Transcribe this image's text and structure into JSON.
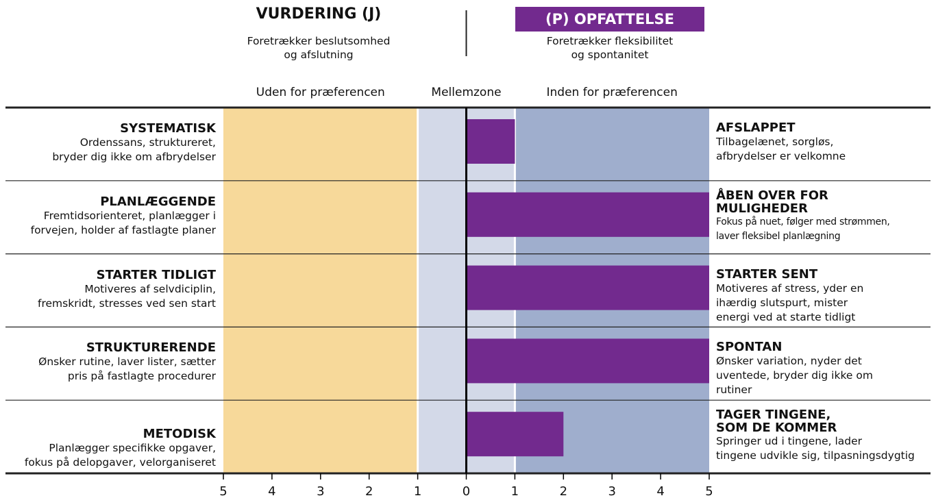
{
  "chart_data": {
    "type": "bar",
    "left_heading": "VURDERING (J)",
    "left_subheading": "Foretrækker beslutsomhed\nog afslutning",
    "right_heading": "(P) OPFATTELSE",
    "right_subheading": "Foretrækker fleksibilitet\nog spontanitet",
    "zones": [
      {
        "label": "Uden for præferencen",
        "from": -5,
        "to": -1,
        "color": "#f7d99a"
      },
      {
        "label": "Mellemzone",
        "from": -1,
        "to": 1,
        "color": "#d3d9e8"
      },
      {
        "label": "Inden for præferencen",
        "from": 1,
        "to": 5,
        "color": "#9faecd"
      }
    ],
    "rows": [
      {
        "left_title": "SYSTEMATISK",
        "left_text": "Ordenssans, struktureret,\nbryder dig ikke om afbrydelser",
        "right_title": "AFSLAPPET",
        "right_text": "Tilbagelænet, sorgløs,\nafbrydelser er velkomne"
      },
      {
        "left_title": "PLANLÆGGENDE",
        "left_text": "Fremtidsorienteret, planlægger i\nforvejen, holder af fastlagte planer",
        "right_title": "ÅBEN OVER FOR\nMULIGHEDER",
        "right_text": "Fokus på nuet, følger med strømmen,\nlaver fleksibel planlægning"
      },
      {
        "left_title": "STARTER TIDLIGT",
        "left_text": "Motiveres af selvdiciplin,\nfremskridt, stresses ved sen start",
        "right_title": "STARTER SENT",
        "right_text": "Motiveres af stress, yder en\nihærdig slutspurt, mister\nenergi ved at starte tidligt"
      },
      {
        "left_title": "STRUKTURERENDE",
        "left_text": "Ønsker rutine, laver lister, sætter\npris på fastlagte procedurer",
        "right_title": "SPONTAN",
        "right_text": "Ønsker variation, nyder det\nuventede, bryder dig ikke om\nrutiner"
      },
      {
        "left_title": "METODISK",
        "left_text": "Planlægger specifikke opgaver,\nfokus på delopgaver, velorganiseret",
        "right_title": "TAGER TINGENE,\nSOM DE KOMMER",
        "right_text": "Springer ud i tingene, lader\ntingene udvikle sig, tilpasningsdygtig"
      }
    ],
    "values": [
      1,
      5,
      5,
      5,
      2
    ],
    "color": "#722a8e",
    "xlim": [
      -5,
      5
    ],
    "xticks": [
      {
        "value": -5,
        "label": "5"
      },
      {
        "value": -4,
        "label": "4"
      },
      {
        "value": -3,
        "label": "3"
      },
      {
        "value": -2,
        "label": "2"
      },
      {
        "value": -1,
        "label": "1"
      },
      0,
      1,
      2,
      3,
      4,
      5
    ]
  }
}
